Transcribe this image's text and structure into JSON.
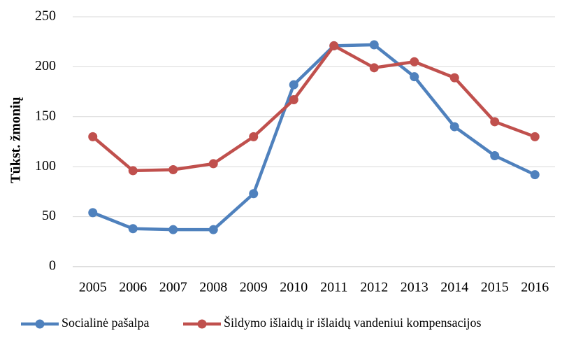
{
  "chart_data": {
    "type": "line",
    "y_label": "Tūkst. žmonių",
    "categories": [
      "2005",
      "2006",
      "2007",
      "2008",
      "2009",
      "2010",
      "2011",
      "2012",
      "2013",
      "2014",
      "2015",
      "2016"
    ],
    "series": [
      {
        "name": "Socialinė pašalpa",
        "color": "#4f81bd",
        "values": [
          54,
          38,
          37,
          37,
          73,
          182,
          221,
          222,
          190,
          140,
          111,
          92
        ]
      },
      {
        "name": "Šildymo išlaidų ir išlaidų vandeniui kompensacijos",
        "color": "#c0504d",
        "values": [
          130,
          96,
          97,
          103,
          130,
          167,
          221,
          199,
          205,
          189,
          145,
          130
        ]
      }
    ],
    "ylim": [
      0,
      250
    ],
    "yticks": [
      0,
      50,
      100,
      150,
      200,
      250
    ],
    "grid": true,
    "legend": "bottom"
  }
}
